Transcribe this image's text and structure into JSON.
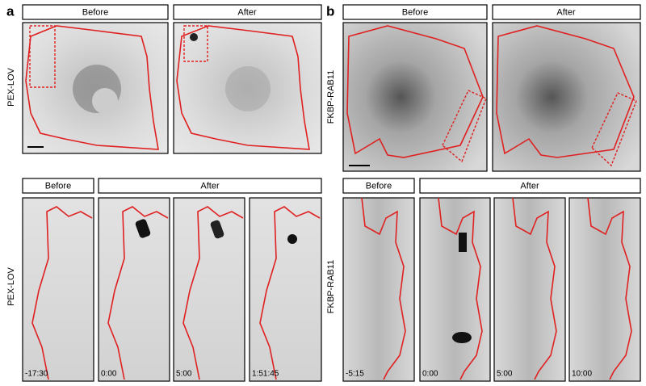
{
  "panels": [
    {
      "label": "a",
      "top": {
        "headers": [
          "Before",
          "After"
        ],
        "side_label": "PEX-LOV"
      },
      "bottom": {
        "headers": [
          "Before",
          "After"
        ],
        "side_label": "PEX-LOV",
        "timestamps": [
          "-17:30",
          "0:00",
          "5:00",
          "1:51:45"
        ]
      }
    },
    {
      "label": "b",
      "top": {
        "headers": [
          "Before",
          "After"
        ],
        "side_label": "FKBP-RAB11"
      },
      "bottom": {
        "headers": [
          "Before",
          "After"
        ],
        "side_label": "FKBP-RAB11",
        "timestamps": [
          "-5:15",
          "0:00",
          "5:00",
          "10:00"
        ]
      }
    }
  ]
}
